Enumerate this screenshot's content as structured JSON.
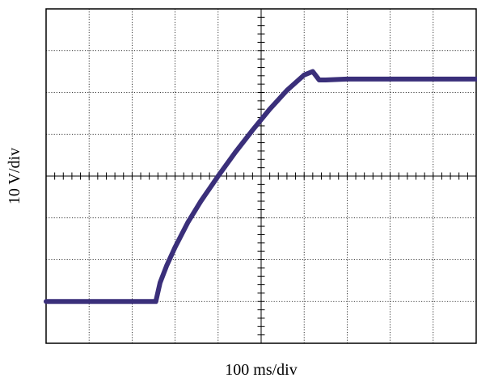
{
  "chart_data": {
    "type": "line",
    "title": "",
    "xlabel": "100 ms/div",
    "ylabel": "10 V/div",
    "grid": true,
    "grid_style": "dotted",
    "divisions": {
      "x": 10,
      "y": 8
    },
    "xlim": [
      0,
      10
    ],
    "ylim": [
      -4,
      4
    ],
    "x_unit": "divisions (100 ms/div)",
    "y_unit": "divisions (10 V/div)",
    "series": [
      {
        "color": "#3a2f7a",
        "x": [
          0,
          2.55,
          2.65,
          2.8,
          3.0,
          3.3,
          3.6,
          4.0,
          4.4,
          4.8,
          5.2,
          5.6,
          6.0,
          6.2,
          6.35,
          6.5,
          7.0,
          8.0,
          9.0,
          10.0
        ],
        "y": [
          -3.0,
          -3.0,
          -2.55,
          -2.15,
          -1.7,
          -1.1,
          -0.6,
          0.0,
          0.57,
          1.1,
          1.6,
          2.05,
          2.42,
          2.5,
          2.3,
          2.3,
          2.32,
          2.32,
          2.32,
          2.32
        ]
      }
    ]
  }
}
